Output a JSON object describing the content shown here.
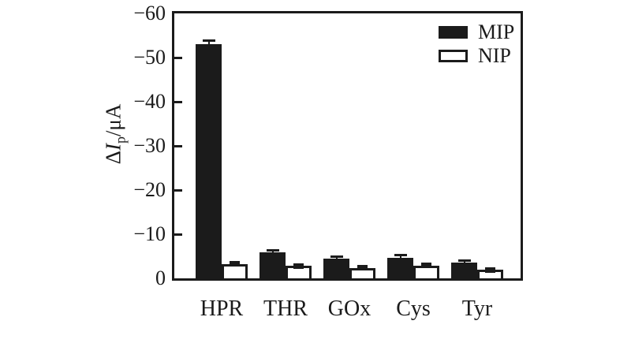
{
  "figure": {
    "background": "#ffffff",
    "ink_color": "#1b1b1b"
  },
  "chart_data": {
    "type": "bar",
    "title": "",
    "ylabel_text": "ΔIp/μA",
    "ylabel_parts": {
      "delta": "Δ",
      "symbol": "I",
      "subscript": "p",
      "unit": "/μA"
    },
    "categories": [
      "HPR",
      "THR",
      "GOx",
      "Cys",
      "Tyr"
    ],
    "series": [
      {
        "name": "MIP",
        "fill": "#1b1b1b",
        "error_style": "cap",
        "values": [
          -53.0,
          -5.9,
          -4.5,
          -4.7,
          -3.6
        ],
        "errors": [
          0.8,
          0.5,
          0.5,
          0.5,
          0.4
        ]
      },
      {
        "name": "NIP",
        "fill": "#ffffff",
        "error_style": "square",
        "values": [
          -3.3,
          -2.8,
          -2.4,
          -2.9,
          -1.9
        ],
        "errors": [
          0.3,
          0.3,
          0.3,
          0.3,
          0.4
        ]
      }
    ],
    "ylim": [
      0,
      -60
    ],
    "y_ticks": [
      0,
      -10,
      -20,
      -30,
      -40,
      -50,
      -60
    ],
    "y_tick_labels": [
      "0",
      "−10",
      "−20",
      "−30",
      "−40",
      "−50",
      "−60"
    ],
    "legend": {
      "position": "top-right",
      "entries": [
        "MIP",
        "NIP"
      ]
    },
    "grid": false
  }
}
